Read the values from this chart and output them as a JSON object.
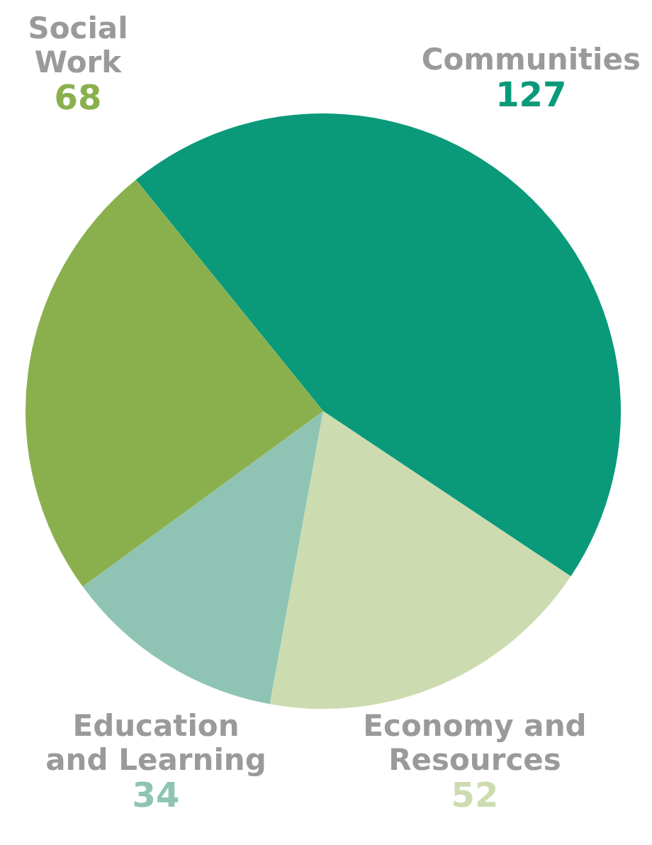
{
  "chart_data": {
    "type": "pie",
    "categories": [
      "Communities",
      "Economy and Resources",
      "Education and Learning",
      "Social Work"
    ],
    "values": [
      127,
      52,
      34,
      68
    ],
    "colors": [
      "#0a9a7a",
      "#cddcb0",
      "#8fc4b4",
      "#8ab04e"
    ],
    "data_labels": true,
    "legend": false
  }
}
